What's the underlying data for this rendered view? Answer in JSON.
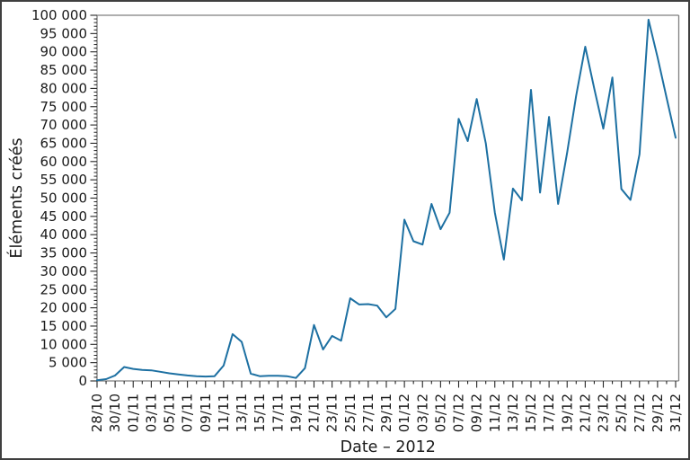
{
  "figure": {
    "background": "#ffffff",
    "border_color": "#3f3f3f",
    "spine_color": "#7f7f7f",
    "tick_color": "#262626",
    "text_color": "#1a1a1a"
  },
  "chart_data": {
    "type": "line",
    "title": "",
    "xlabel": "Date – 2012",
    "ylabel": "Éléments créés",
    "line_color": "#1d70a2",
    "ylim": [
      0,
      100000
    ],
    "grid": false,
    "legend": "none",
    "x": [
      "28/10",
      "29/10",
      "30/10",
      "31/10",
      "01/11",
      "02/11",
      "03/11",
      "04/11",
      "05/11",
      "06/11",
      "07/11",
      "08/11",
      "09/11",
      "10/11",
      "11/11",
      "12/11",
      "13/11",
      "14/11",
      "15/11",
      "16/11",
      "17/11",
      "18/11",
      "19/11",
      "20/11",
      "21/11",
      "22/11",
      "23/11",
      "24/11",
      "25/11",
      "26/11",
      "27/11",
      "28/11",
      "29/11",
      "30/11",
      "01/12",
      "02/12",
      "03/12",
      "04/12",
      "05/12",
      "06/12",
      "07/12",
      "08/12",
      "09/12",
      "10/12",
      "11/12",
      "12/12",
      "13/12",
      "14/12",
      "15/12",
      "16/12",
      "17/12",
      "18/12",
      "19/12",
      "20/12",
      "21/12",
      "22/12",
      "23/12",
      "24/12",
      "25/12",
      "26/12",
      "27/12",
      "28/12",
      "29/12",
      "30/12",
      "31/12"
    ],
    "values": [
      200,
      500,
      1500,
      3800,
      3300,
      3000,
      2900,
      2500,
      2100,
      1800,
      1500,
      1300,
      1200,
      1300,
      4200,
      12800,
      10700,
      2000,
      1300,
      1400,
      1400,
      1300,
      800,
      3500,
      15300,
      8600,
      12300,
      11000,
      22600,
      20900,
      21000,
      20600,
      17400,
      19700,
      44100,
      38200,
      37300,
      48400,
      41500,
      46000,
      71700,
      65600,
      77100,
      65000,
      46000,
      33200,
      52600,
      49400,
      79600,
      51500,
      72200,
      48400,
      62500,
      78000,
      91400,
      80000,
      69000,
      83000,
      52500,
      49500,
      62000,
      98800,
      88500,
      77500,
      66500
    ],
    "xtick_every_days": 2,
    "xtick_labels": [
      "28/10",
      "30/10",
      "01/11",
      "03/11",
      "05/11",
      "07/11",
      "09/11",
      "11/11",
      "13/11",
      "15/11",
      "17/11",
      "19/11",
      "21/11",
      "23/11",
      "25/11",
      "27/11",
      "29/11",
      "01/12",
      "03/12",
      "05/12",
      "07/12",
      "09/12",
      "11/12",
      "13/12",
      "15/12",
      "17/12",
      "19/12",
      "21/12",
      "23/12",
      "25/12",
      "27/12",
      "29/12",
      "31/12"
    ],
    "ytick_values": [
      0,
      5000,
      10000,
      15000,
      20000,
      25000,
      30000,
      35000,
      40000,
      45000,
      50000,
      55000,
      60000,
      65000,
      70000,
      75000,
      80000,
      85000,
      90000,
      95000,
      100000
    ],
    "ytick_labels": [
      "0",
      "5 000",
      "10 000",
      "15 000",
      "20 000",
      "25 000",
      "30 000",
      "35 000",
      "40 000",
      "45 000",
      "50 000",
      "55 000",
      "60 000",
      "65 000",
      "70 000",
      "75 000",
      "80 000",
      "85 000",
      "90 000",
      "95 000",
      "100 000"
    ],
    "ytick_minor_step": 1000
  }
}
